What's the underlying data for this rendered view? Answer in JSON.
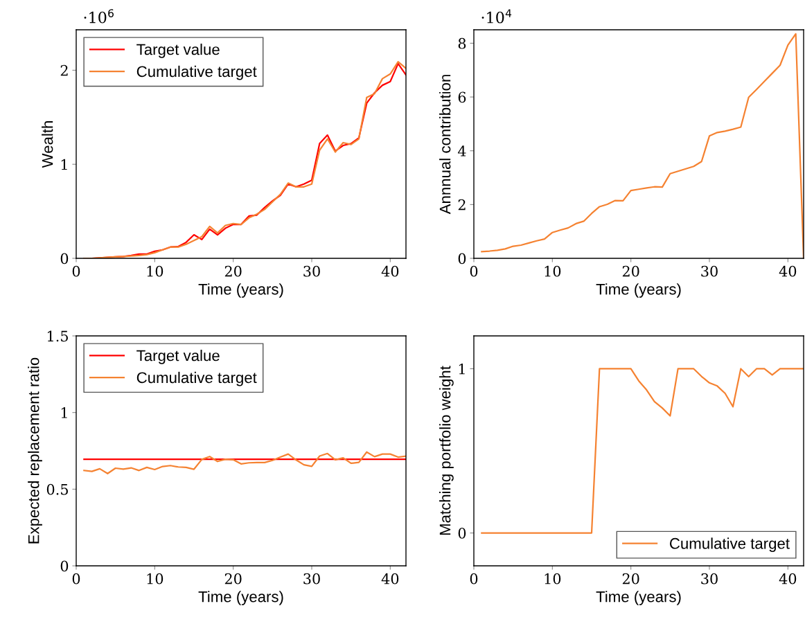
{
  "chart_data": [
    {
      "type": "line",
      "xlabel": "Time (years)",
      "ylabel": "Wealth",
      "annotations": [
        "·10$^{6}$"
      ],
      "legend": "top left",
      "grid": false,
      "x": [
        1,
        2,
        3,
        4,
        5,
        6,
        7,
        8,
        9,
        10,
        11,
        12,
        13,
        14,
        15,
        16,
        17,
        18,
        19,
        20,
        21,
        22,
        23,
        24,
        25,
        26,
        27,
        28,
        29,
        30,
        31,
        32,
        33,
        34,
        35,
        36,
        37,
        38,
        39,
        40,
        41,
        42
      ],
      "xlim": [
        0,
        42
      ],
      "xticks": [
        0,
        10,
        20,
        30,
        40
      ],
      "ylim": [
        0,
        2.43
      ],
      "yticks": [
        0,
        1,
        2
      ],
      "series": [
        {
          "name": "Target value",
          "color": "#ff0000",
          "values": [
            0.0,
            0.0,
            0.005,
            0.01,
            0.015,
            0.02,
            0.03,
            0.045,
            0.045,
            0.075,
            0.09,
            0.12,
            0.125,
            0.17,
            0.25,
            0.2,
            0.31,
            0.25,
            0.32,
            0.36,
            0.36,
            0.45,
            0.46,
            0.54,
            0.61,
            0.67,
            0.79,
            0.76,
            0.79,
            0.83,
            1.22,
            1.31,
            1.14,
            1.2,
            1.22,
            1.28,
            1.65,
            1.76,
            1.84,
            1.88,
            2.07,
            1.95
          ]
        },
        {
          "name": "Cumulative target",
          "color": "#f58231",
          "values": [
            0.0,
            0.0,
            0.005,
            0.01,
            0.015,
            0.02,
            0.025,
            0.03,
            0.04,
            0.06,
            0.09,
            0.12,
            0.12,
            0.15,
            0.19,
            0.23,
            0.34,
            0.27,
            0.35,
            0.37,
            0.36,
            0.43,
            0.47,
            0.52,
            0.6,
            0.68,
            0.8,
            0.76,
            0.76,
            0.79,
            1.15,
            1.27,
            1.13,
            1.23,
            1.21,
            1.27,
            1.71,
            1.75,
            1.91,
            1.96,
            2.09,
            2.02
          ]
        }
      ]
    },
    {
      "type": "line",
      "xlabel": "Time (years)",
      "ylabel": "Annnual contribution",
      "annotations": [
        "·10$^{4}$"
      ],
      "grid": false,
      "x": [
        1,
        2,
        3,
        4,
        5,
        6,
        7,
        8,
        9,
        10,
        11,
        12,
        13,
        14,
        15,
        16,
        17,
        18,
        19,
        20,
        21,
        22,
        23,
        24,
        25,
        26,
        27,
        28,
        29,
        30,
        31,
        32,
        33,
        34,
        35,
        36,
        37,
        38,
        39,
        40,
        41,
        42
      ],
      "xlim": [
        0,
        42
      ],
      "xticks": [
        0,
        10,
        20,
        30,
        40
      ],
      "ylim": [
        0,
        8.5
      ],
      "yticks": [
        0,
        2,
        4,
        6,
        8
      ],
      "series": [
        {
          "color": "#f58231",
          "values": [
            0.25,
            0.27,
            0.3,
            0.35,
            0.45,
            0.49,
            0.57,
            0.65,
            0.72,
            0.96,
            1.05,
            1.13,
            1.29,
            1.38,
            1.67,
            1.92,
            2.01,
            2.15,
            2.14,
            2.52,
            2.57,
            2.62,
            2.66,
            2.65,
            3.15,
            3.24,
            3.33,
            3.42,
            3.6,
            4.55,
            4.68,
            4.73,
            4.8,
            4.88,
            5.99,
            6.28,
            6.58,
            6.88,
            7.18,
            7.93,
            8.35,
            0.0
          ]
        }
      ]
    },
    {
      "type": "line",
      "xlabel": "Time (years)",
      "ylabel": "Expected replacement ratio",
      "legend": "top left",
      "grid": false,
      "x": [
        1,
        2,
        3,
        4,
        5,
        6,
        7,
        8,
        9,
        10,
        11,
        12,
        13,
        14,
        15,
        16,
        17,
        18,
        19,
        20,
        21,
        22,
        23,
        24,
        25,
        26,
        27,
        28,
        29,
        30,
        31,
        32,
        33,
        34,
        35,
        36,
        37,
        38,
        39,
        40,
        41,
        42
      ],
      "xlim": [
        0,
        42
      ],
      "xticks": [
        0,
        10,
        20,
        30,
        40
      ],
      "ylim": [
        0,
        1.5
      ],
      "yticks": [
        0,
        0.5,
        1,
        1.5
      ],
      "series": [
        {
          "name": "Target value",
          "color": "#ff0000",
          "values": [
            0.695,
            0.695,
            0.695,
            0.695,
            0.695,
            0.695,
            0.695,
            0.695,
            0.695,
            0.695,
            0.695,
            0.695,
            0.695,
            0.695,
            0.695,
            0.695,
            0.695,
            0.695,
            0.695,
            0.695,
            0.695,
            0.695,
            0.695,
            0.695,
            0.695,
            0.695,
            0.695,
            0.695,
            0.695,
            0.695,
            0.695,
            0.695,
            0.695,
            0.695,
            0.695,
            0.695,
            0.695,
            0.695,
            0.695,
            0.695,
            0.695,
            0.695
          ]
        },
        {
          "name": "Cumulative target",
          "color": "#f58231",
          "values": [
            0.622,
            0.616,
            0.633,
            0.602,
            0.637,
            0.631,
            0.639,
            0.622,
            0.642,
            0.628,
            0.648,
            0.654,
            0.645,
            0.642,
            0.63,
            0.694,
            0.713,
            0.681,
            0.695,
            0.692,
            0.665,
            0.672,
            0.674,
            0.674,
            0.688,
            0.709,
            0.729,
            0.691,
            0.659,
            0.649,
            0.716,
            0.733,
            0.692,
            0.704,
            0.669,
            0.675,
            0.742,
            0.712,
            0.729,
            0.729,
            0.709,
            0.716
          ]
        }
      ]
    },
    {
      "type": "line",
      "xlabel": "Time (years)",
      "ylabel": "Matching portfolio weight",
      "legend": "bottom right",
      "grid": false,
      "x": [
        1,
        2,
        3,
        4,
        5,
        6,
        7,
        8,
        9,
        10,
        11,
        12,
        13,
        14,
        15,
        16,
        17,
        18,
        19,
        20,
        21,
        22,
        23,
        24,
        25,
        26,
        27,
        28,
        29,
        30,
        31,
        32,
        33,
        34,
        35,
        36,
        37,
        38,
        39,
        40,
        41,
        42
      ],
      "xlim": [
        0,
        42
      ],
      "xticks": [
        0,
        10,
        20,
        30,
        40
      ],
      "ylim": [
        -0.2,
        1.2
      ],
      "yticks": [
        0,
        1
      ],
      "series": [
        {
          "name": "Cumulative target",
          "color": "#f58231",
          "values": [
            0,
            0,
            0,
            0,
            0,
            0,
            0,
            0,
            0,
            0,
            0,
            0,
            0,
            0,
            0,
            1,
            1,
            1,
            1,
            1,
            0.926,
            0.871,
            0.8,
            0.761,
            0.713,
            1,
            1,
            1,
            0.953,
            0.914,
            0.895,
            0.85,
            0.769,
            1,
            0.952,
            1,
            1,
            0.962,
            1,
            1,
            1,
            1
          ]
        }
      ]
    }
  ]
}
